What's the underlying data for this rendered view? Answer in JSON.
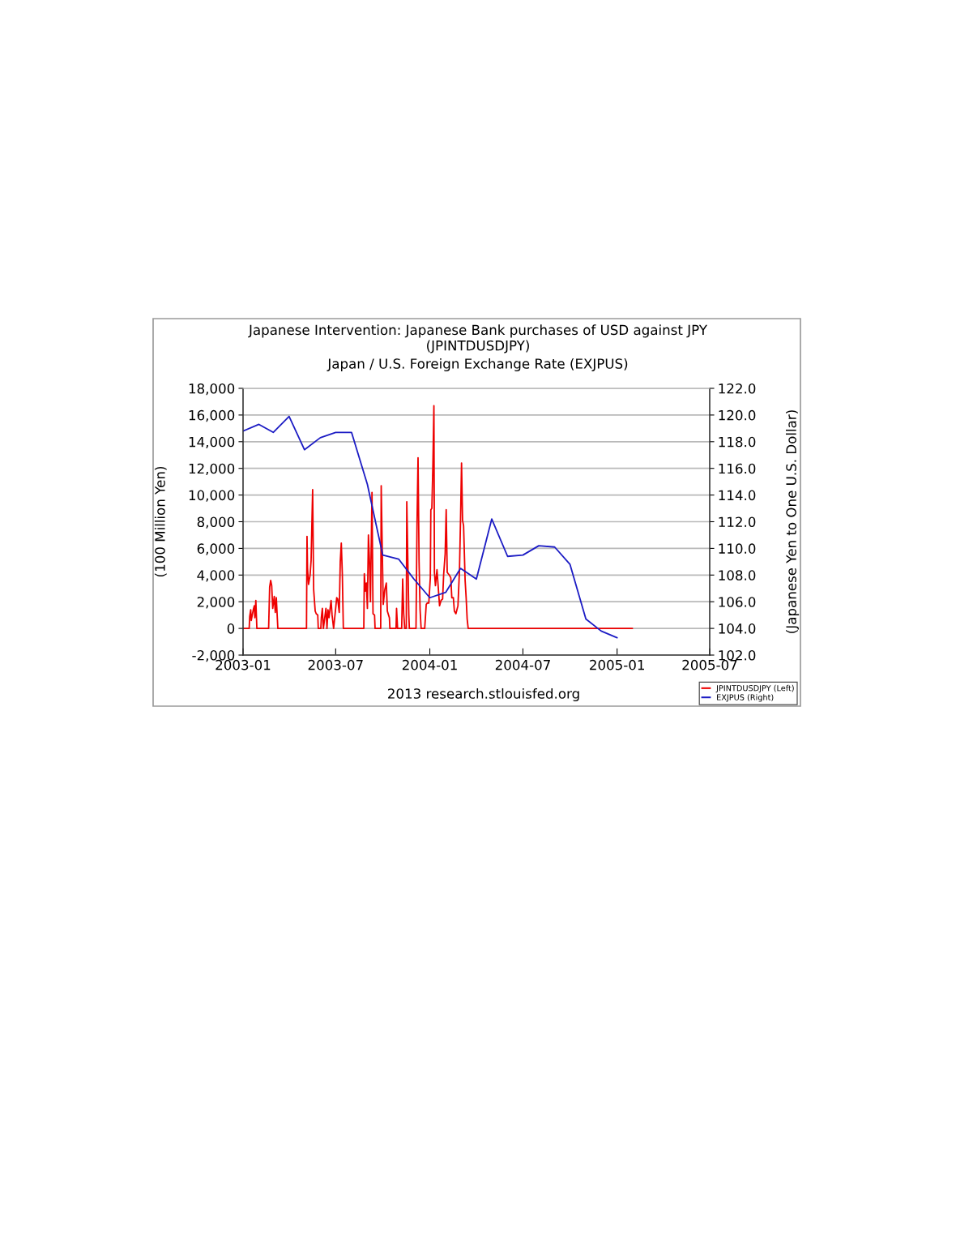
{
  "chart_data": {
    "type": "line",
    "title": "Japanese Intervention: Japanese Bank purchases of USD against JPY\n(JPINTDUSDJPY)",
    "subtitle": "Japan / U.S. Foreign Exchange Rate (EXJPUS)",
    "ylabel": "(100 Million Yen)",
    "y2label": "(Japanese Yen to One U.S. Dollar)",
    "annotations": [
      "2013 research.stlouisfed.org"
    ],
    "xlim": [
      "2003-01",
      "2005-07"
    ],
    "xticks": [
      "2003-01",
      "2003-07",
      "2004-01",
      "2004-07",
      "2005-01",
      "2005-07"
    ],
    "ylim": [
      -2000,
      18000
    ],
    "yticks": [
      {
        "value": -2000,
        "label": "-2,000"
      },
      0,
      {
        "value": 2000,
        "label": "2,000"
      },
      {
        "value": 4000,
        "label": "4,000"
      },
      {
        "value": 6000,
        "label": "6,000"
      },
      {
        "value": 8000,
        "label": "8,000"
      },
      {
        "value": 10000,
        "label": "10,000"
      },
      {
        "value": 12000,
        "label": "12,000"
      },
      {
        "value": 14000,
        "label": "14,000"
      },
      {
        "value": 16000,
        "label": "16,000"
      },
      {
        "value": 18000,
        "label": "18,000"
      }
    ],
    "y2lim": [
      102,
      122
    ],
    "y2ticks": [
      {
        "value": 102,
        "label": "102.0"
      },
      {
        "value": 104,
        "label": "104.0"
      },
      {
        "value": 106,
        "label": "106.0"
      },
      {
        "value": 108,
        "label": "108.0"
      },
      {
        "value": 110,
        "label": "110.0"
      },
      {
        "value": 112,
        "label": "112.0"
      },
      {
        "value": 114,
        "label": "114.0"
      },
      {
        "value": 116,
        "label": "116.0"
      },
      {
        "value": 118,
        "label": "118.0"
      },
      {
        "value": 120,
        "label": "120.0"
      },
      {
        "value": 122,
        "label": "122.0"
      }
    ],
    "grid": "y",
    "legend": "bottom right",
    "marker": "none",
    "line_style": "solid",
    "series": [
      {
        "name": "JPINTDUSDJPY (Left)",
        "color": "#ee0000",
        "axis": "y",
        "x": [
          "2003-01-01",
          "2003-01-13",
          "2003-01-14",
          "2003-01-16",
          "2003-01-17",
          "2003-01-21",
          "2003-01-23",
          "2003-01-24",
          "2003-01-26",
          "2003-01-28",
          "2003-02-20",
          "2003-02-22",
          "2003-02-24",
          "2003-02-26",
          "2003-02-28",
          "2003-03-03",
          "2003-03-05",
          "2003-03-07",
          "2003-03-10",
          "2003-05-05",
          "2003-05-06",
          "2003-05-07",
          "2003-05-09",
          "2003-05-12",
          "2003-05-14",
          "2003-05-17",
          "2003-05-19",
          "2003-05-22",
          "2003-05-24",
          "2003-05-27",
          "2003-05-28",
          "2003-06-02",
          "2003-06-03",
          "2003-06-05",
          "2003-06-07",
          "2003-06-10",
          "2003-06-12",
          "2003-06-14",
          "2003-06-16",
          "2003-06-18",
          "2003-06-22",
          "2003-06-24",
          "2003-06-27",
          "2003-07-01",
          "2003-07-03",
          "2003-07-05",
          "2003-07-08",
          "2003-07-10",
          "2003-07-12",
          "2003-07-14",
          "2003-07-16",
          "2003-08-25",
          "2003-08-26",
          "2003-08-28",
          "2003-08-30",
          "2003-09-01",
          "2003-09-03",
          "2003-09-05",
          "2003-09-07",
          "2003-09-10",
          "2003-09-11",
          "2003-09-12",
          "2003-09-15",
          "2003-09-16",
          "2003-09-27",
          "2003-09-28",
          "2003-09-30",
          "2003-10-02",
          "2003-10-05",
          "2003-10-08",
          "2003-10-10",
          "2003-10-14",
          "2003-10-15",
          "2003-10-27",
          "2003-10-28",
          "2003-10-30",
          "2003-11-07",
          "2003-11-09",
          "2003-11-11",
          "2003-11-13",
          "2003-11-16",
          "2003-11-17",
          "2003-11-19",
          "2003-11-21",
          "2003-11-22",
          "2003-12-05",
          "2003-12-07",
          "2003-12-09",
          "2003-12-11",
          "2003-12-13",
          "2003-12-15",
          "2003-12-22",
          "2003-12-25",
          "2003-12-27",
          "2003-12-30",
          "2004-01-02",
          "2004-01-03",
          "2004-01-05",
          "2004-01-07",
          "2004-01-09",
          "2004-01-10",
          "2004-01-12",
          "2004-01-15",
          "2004-01-18",
          "2004-01-20",
          "2004-01-23",
          "2004-01-26",
          "2004-01-28",
          "2004-01-31",
          "2004-02-02",
          "2004-02-04",
          "2004-02-08",
          "2004-02-11",
          "2004-02-13",
          "2004-02-16",
          "2004-02-18",
          "2004-02-21",
          "2004-02-25",
          "2004-02-28",
          "2004-03-01",
          "2004-03-03",
          "2004-03-05",
          "2004-03-07",
          "2004-03-10",
          "2004-03-12",
          "2004-03-14",
          "2004-03-16",
          "2005-01-31"
        ],
        "values": [
          0,
          0,
          900,
          1400,
          600,
          1400,
          1700,
          800,
          2100,
          0,
          0,
          3100,
          3600,
          3200,
          1500,
          2400,
          1200,
          2300,
          0,
          0,
          6900,
          4500,
          3300,
          4000,
          5100,
          10400,
          2900,
          1300,
          1100,
          1000,
          0,
          0,
          800,
          1500,
          0,
          900,
          1500,
          0,
          1400,
          800,
          2100,
          1000,
          0,
          1500,
          2300,
          2200,
          1200,
          5000,
          6400,
          4100,
          0,
          0,
          4100,
          2800,
          3400,
          1500,
          7000,
          5100,
          2000,
          10200,
          5600,
          1100,
          1000,
          0,
          0,
          10700,
          6000,
          1800,
          2900,
          3400,
          1300,
          800,
          0,
          0,
          1500,
          0,
          0,
          3700,
          1100,
          0,
          0,
          9500,
          5200,
          1000,
          0,
          0,
          7900,
          12800,
          5000,
          1400,
          0,
          0,
          1800,
          1900,
          1900,
          3800,
          8900,
          9000,
          12200,
          16700,
          4200,
          3200,
          4400,
          2800,
          1700,
          2100,
          2200,
          4000,
          5600,
          8900,
          4200,
          4000,
          3800,
          2300,
          2300,
          1300,
          1100,
          1700,
          4400,
          8100,
          12400,
          8100,
          7700,
          3600,
          2300,
          700,
          0,
          0
        ]
      },
      {
        "name": "EXJPUS (Right)",
        "color": "#1c1cc4",
        "axis": "y2",
        "x": [
          "2003-01",
          "2003-02",
          "2003-03",
          "2003-04",
          "2003-05",
          "2003-06",
          "2003-07",
          "2003-08",
          "2003-09",
          "2003-10",
          "2003-11",
          "2003-12",
          "2004-01",
          "2004-02",
          "2004-03",
          "2004-04",
          "2004-05",
          "2004-06",
          "2004-07",
          "2004-08",
          "2004-09",
          "2004-10",
          "2004-11",
          "2004-12",
          "2005-01"
        ],
        "values": [
          118.8,
          119.3,
          118.7,
          119.9,
          117.4,
          118.3,
          118.7,
          118.7,
          114.8,
          109.5,
          109.2,
          107.7,
          106.3,
          106.7,
          108.5,
          107.7,
          112.2,
          109.4,
          109.5,
          110.2,
          110.1,
          108.8,
          104.7,
          103.8,
          103.3
        ]
      }
    ]
  }
}
